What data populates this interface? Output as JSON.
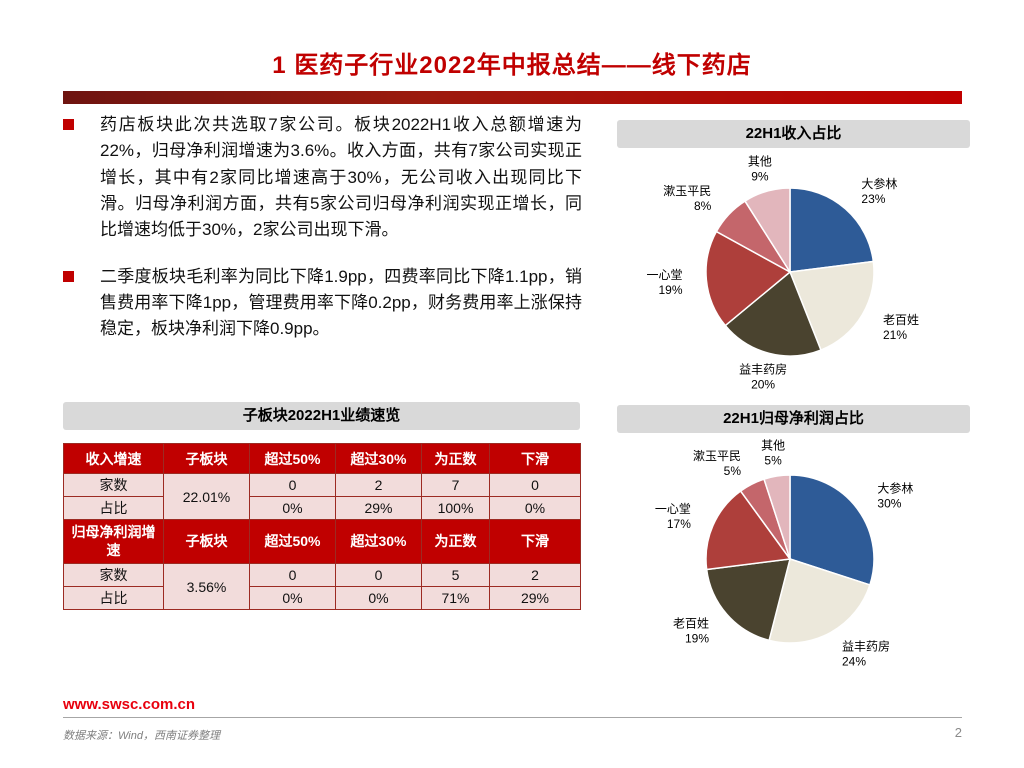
{
  "page": {
    "title": "1 医药子行业2022年中报总结——线下药店",
    "page_number": "2",
    "website": "www.swsc.com.cn",
    "source_note": "数据来源：Wind，西南证券整理"
  },
  "colors": {
    "accent_red": "#C00000",
    "table_header_bg": "#C00000",
    "table_cell_bg": "#F2DCDB",
    "panel_title_bg": "#D9D9D9"
  },
  "bullets": [
    "药店板块此次共选取7家公司。板块2022H1收入总额增速为22%，归母净利润增速为3.6%。收入方面，共有7家公司实现正增长，其中有2家同比增速高于30%，无公司收入出现同比下滑。归母净利润方面，共有5家公司归母净利润实现正增长，同比增速均低于30%，2家公司出现下滑。",
    "二季度板块毛利率为同比下降1.9pp，四费率同比下降1.1pp，销售费用率下降1pp，管理费用率下降0.2pp，财务费用率上涨保持稳定，板块净利润下降0.9pp。"
  ],
  "table": {
    "title": "子板块2022H1业绩速览",
    "sections": [
      {
        "header": [
          "收入增速",
          "子板块",
          "超过50%",
          "超过30%",
          "为正数",
          "下滑"
        ],
        "merged_value": "22.01%",
        "rows": [
          {
            "label": "家数",
            "values": [
              "0",
              "2",
              "7",
              "0"
            ]
          },
          {
            "label": "占比",
            "values": [
              "0%",
              "29%",
              "100%",
              "0%"
            ]
          }
        ]
      },
      {
        "header": [
          "归母净利润增速",
          "子板块",
          "超过50%",
          "超过30%",
          "为正数",
          "下滑"
        ],
        "merged_value": "3.56%",
        "rows": [
          {
            "label": "家数",
            "values": [
              "0",
              "0",
              "5",
              "2"
            ]
          },
          {
            "label": "占比",
            "values": [
              "0%",
              "0%",
              "71%",
              "29%"
            ]
          }
        ]
      }
    ]
  },
  "chart_data": [
    {
      "type": "pie",
      "title": "22H1收入占比",
      "labels": [
        "大参林",
        "老百姓",
        "益丰药房",
        "一心堂",
        "漱玉平民",
        "其他"
      ],
      "values": [
        23,
        21,
        20,
        19,
        8,
        9
      ],
      "pct_labels": [
        "23%",
        "21%",
        "20%",
        "19%",
        "8%",
        "9%"
      ],
      "colors": [
        "#2E5B97",
        "#ECE8DB",
        "#4A432F",
        "#AE3F3B",
        "#C4666B",
        "#E2B6BC"
      ],
      "start_angle_deg": 0,
      "direction": "clockwise",
      "legend": "none"
    },
    {
      "type": "pie",
      "title": "22H1归母净利润占比",
      "labels": [
        "大参林",
        "益丰药房",
        "老百姓",
        "一心堂",
        "漱玉平民",
        "其他"
      ],
      "values": [
        30,
        24,
        19,
        17,
        5,
        5
      ],
      "pct_labels": [
        "30%",
        "24%",
        "19%",
        "17%",
        "5%",
        "5%"
      ],
      "colors": [
        "#2E5B97",
        "#ECE8DB",
        "#4A432F",
        "#AE3F3B",
        "#C4666B",
        "#E2B6BC"
      ],
      "start_angle_deg": 0,
      "direction": "clockwise",
      "legend": "none"
    }
  ]
}
